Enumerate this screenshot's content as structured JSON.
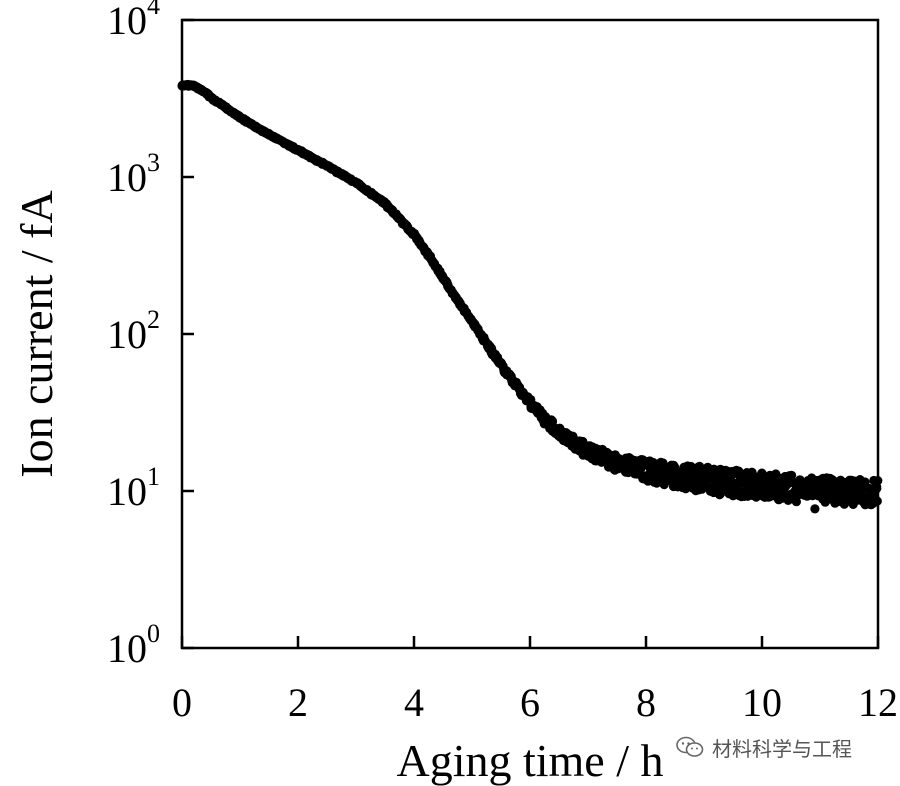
{
  "chart_data": {
    "type": "scatter",
    "xlabel": "Aging time / h",
    "ylabel": "Ion current / fA",
    "xlim": [
      0,
      12
    ],
    "ylim": [
      1,
      10000
    ],
    "yscale": "log",
    "xticks": [
      0,
      2,
      4,
      6,
      8,
      10,
      12
    ],
    "yticks": [
      {
        "value": 1,
        "base": "10",
        "exp": "0"
      },
      {
        "value": 10,
        "base": "10",
        "exp": "1"
      },
      {
        "value": 100,
        "base": "10",
        "exp": "2"
      },
      {
        "value": 1000,
        "base": "10",
        "exp": "3"
      },
      {
        "value": 10000,
        "base": "10",
        "exp": "4"
      }
    ],
    "grid": false,
    "legend": "none",
    "marker_color": "#000000",
    "series": [
      {
        "points": [
          [
            0.0,
            3800
          ],
          [
            0.1,
            3850
          ],
          [
            0.2,
            3800
          ],
          [
            0.3,
            3650
          ],
          [
            0.4,
            3450
          ],
          [
            0.5,
            3200
          ],
          [
            0.7,
            2850
          ],
          [
            1.0,
            2400
          ],
          [
            1.3,
            2050
          ],
          [
            1.6,
            1780
          ],
          [
            2.0,
            1480
          ],
          [
            2.5,
            1180
          ],
          [
            3.0,
            920
          ],
          [
            3.5,
            680
          ],
          [
            4.0,
            430
          ],
          [
            4.3,
            300
          ],
          [
            4.6,
            200
          ],
          [
            5.0,
            120
          ],
          [
            5.4,
            72
          ],
          [
            5.8,
            45
          ],
          [
            6.2,
            30
          ],
          [
            6.6,
            22
          ],
          [
            7.0,
            18
          ],
          [
            7.5,
            15
          ],
          [
            8.0,
            13.5
          ],
          [
            8.5,
            12.5
          ],
          [
            9.0,
            11.8
          ],
          [
            9.5,
            11.2
          ],
          [
            10.0,
            10.8
          ],
          [
            10.5,
            10.4
          ],
          [
            11.0,
            10.2
          ],
          [
            11.5,
            9.9
          ],
          [
            12.0,
            9.7
          ]
        ]
      }
    ]
  },
  "watermark": {
    "text": "材料科学与工程",
    "icon": "wechat-icon"
  }
}
